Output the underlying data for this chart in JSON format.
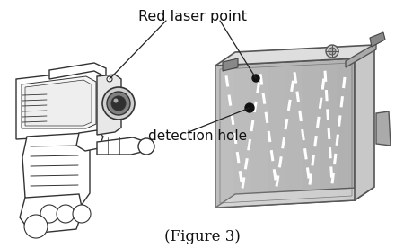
{
  "title": "(Figure 3)",
  "label_laser": "Red laser point",
  "label_detection": "detection hole",
  "bg_color": "#ffffff",
  "gun_edge": "#333333",
  "box_front_color": "#b8b8b8",
  "box_top_color": "#e0e0e0",
  "box_right_color": "#c8c8c8",
  "figure_width": 4.5,
  "figure_height": 2.76,
  "dpi": 100,
  "ann_color": "#222222",
  "zz_color": "#ffffff"
}
